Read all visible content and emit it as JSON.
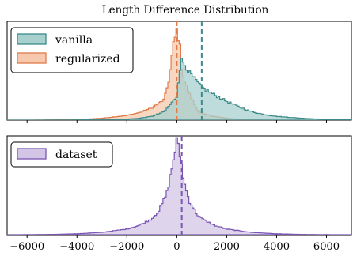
{
  "chart_data": [
    {
      "type": "area",
      "title": "Length Difference Distribution",
      "xlabel": "",
      "ylabel": "",
      "xlim": [
        -6800,
        7000
      ],
      "legend_position": "upper-left",
      "series": [
        {
          "name": "vanilla",
          "color": "#3d8a8a",
          "fill": "#a7d0cf",
          "mean_line": 1000,
          "x": [
            -6000,
            -4000,
            -3000,
            -2000,
            -1500,
            -1000,
            -500,
            0,
            100,
            200,
            300,
            400,
            500,
            700,
            1000,
            1500,
            2000,
            2500,
            3000,
            3500,
            4000,
            5000,
            6000
          ],
          "density": [
            0.0,
            0.002,
            0.005,
            0.01,
            0.02,
            0.04,
            0.09,
            0.25,
            0.52,
            0.64,
            0.6,
            0.56,
            0.5,
            0.44,
            0.35,
            0.27,
            0.2,
            0.14,
            0.09,
            0.06,
            0.04,
            0.02,
            0.008
          ]
        },
        {
          "name": "regularized",
          "color": "#e07a48",
          "fill": "#f6c9ae",
          "mean_line": 0,
          "x": [
            -6000,
            -4000,
            -3000,
            -2000,
            -1500,
            -1000,
            -500,
            -300,
            -150,
            0,
            100,
            200,
            300,
            500,
            800,
            1000,
            1500,
            2000,
            2500,
            3000,
            4000
          ],
          "density": [
            0.0,
            0.005,
            0.02,
            0.05,
            0.08,
            0.13,
            0.22,
            0.45,
            0.78,
            0.95,
            0.85,
            0.55,
            0.42,
            0.28,
            0.12,
            0.07,
            0.04,
            0.02,
            0.01,
            0.005,
            0.0
          ]
        }
      ]
    },
    {
      "type": "area",
      "xlim": [
        -6800,
        7000
      ],
      "x_ticks": [
        -6000,
        -4000,
        -2000,
        0,
        2000,
        4000,
        6000
      ],
      "x_tick_labels": [
        "−6000",
        "−4000",
        "−2000",
        "0",
        "2000",
        "4000",
        "6000"
      ],
      "legend_position": "upper-left",
      "series": [
        {
          "name": "dataset",
          "color": "#7a55b3",
          "fill": "#d3c5e6",
          "mean_line": 200,
          "x": [
            -6500,
            -5000,
            -4000,
            -3000,
            -2000,
            -1500,
            -1000,
            -700,
            -400,
            -200,
            0,
            150,
            300,
            500,
            800,
            1000,
            1500,
            2000,
            3000,
            4000,
            5000,
            6500
          ],
          "density": [
            0.0,
            0.003,
            0.01,
            0.025,
            0.06,
            0.1,
            0.17,
            0.26,
            0.44,
            0.7,
            1.0,
            0.82,
            0.55,
            0.36,
            0.22,
            0.17,
            0.1,
            0.06,
            0.025,
            0.01,
            0.003,
            0.0
          ]
        }
      ]
    }
  ]
}
